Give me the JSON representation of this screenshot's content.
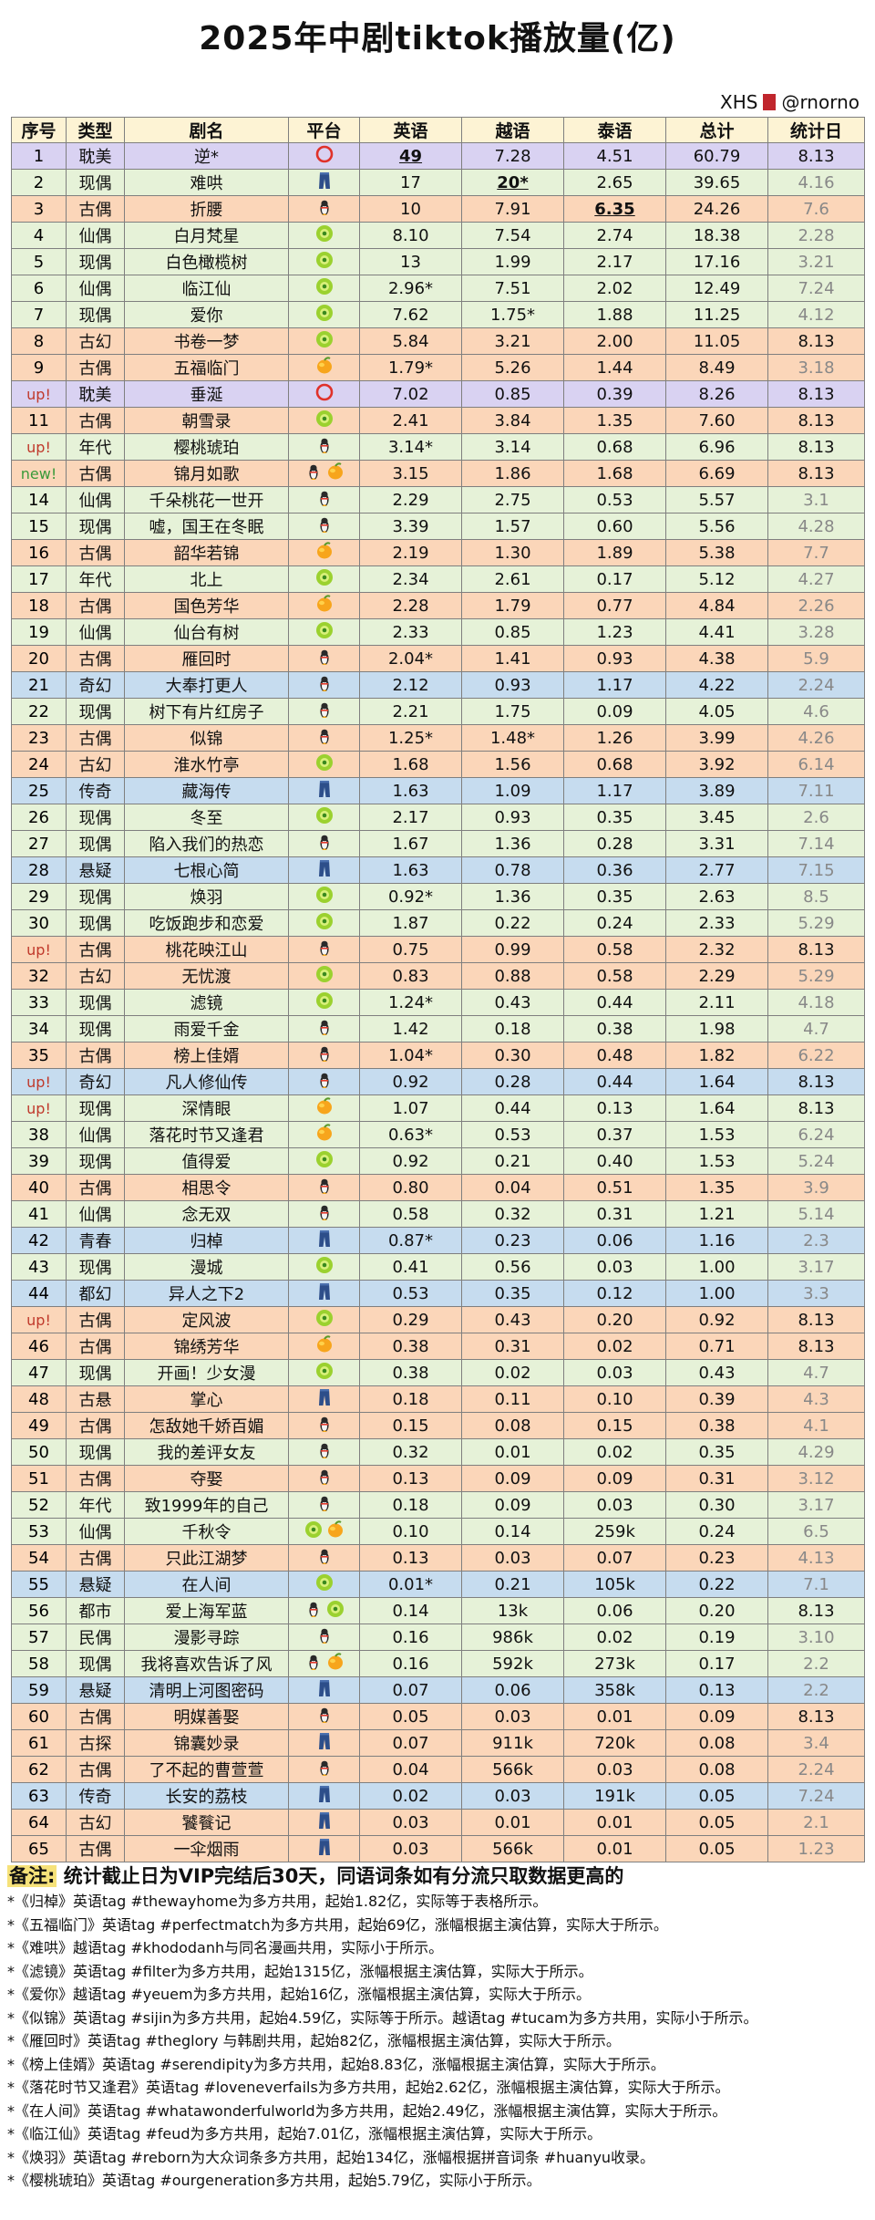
{
  "title": "2025年中剧tiktok播放量(亿)",
  "watermark": "XHS",
  "watermark_handle": "@rnorno",
  "headers": [
    "序号",
    "类型",
    "剧名",
    "平台",
    "英语",
    "越语",
    "泰语",
    "总计",
    "统计日"
  ],
  "row_colors": {
    "耽美": "#d9d2f2",
    "现偶": "#e6f2d8",
    "古偶": "#fbd6b9",
    "仙偶": "#e6f2d8",
    "古幻": "#fbd6b9",
    "年代": "#e6f2d8",
    "奇幻": "#c6dcef",
    "传奇": "#c6dcef",
    "悬疑": "#c6dcef",
    "青春": "#c6dcef",
    "都幻": "#c6dcef",
    "古悬": "#fbd6b9",
    "都市": "#e6f2d8",
    "民偶": "#e6f2d8",
    "古探": "#fbd6b9"
  },
  "platform_icons": {
    "youku": "youku-ring-icon",
    "iqiyi": "iqiyi-green-icon",
    "tencent": "tencent-penguin-icon",
    "mango": "mango-fruit-icon",
    "letv": "jeans-icon"
  },
  "rows": [
    {
      "seq": "1",
      "type": "耽美",
      "name": "逆*",
      "plat": [
        "youku"
      ],
      "en": "49",
      "vi": "7.28",
      "th": "4.51",
      "total": "60.79",
      "date": "8.13",
      "enb": true
    },
    {
      "seq": "2",
      "type": "现偶",
      "name": "难哄",
      "plat": [
        "letv"
      ],
      "en": "17",
      "vi": "20*",
      "th": "2.65",
      "total": "39.65",
      "date": "4.16",
      "dg": true,
      "vib": true
    },
    {
      "seq": "3",
      "type": "古偶",
      "name": "折腰",
      "plat": [
        "tencent"
      ],
      "en": "10",
      "vi": "7.91",
      "th": "6.35",
      "total": "24.26",
      "date": "7.6",
      "dg": true,
      "thb": true
    },
    {
      "seq": "4",
      "type": "仙偶",
      "name": "白月梵星",
      "plat": [
        "iqiyi"
      ],
      "en": "8.10",
      "vi": "7.54",
      "th": "2.74",
      "total": "18.38",
      "date": "2.28",
      "dg": true
    },
    {
      "seq": "5",
      "type": "现偶",
      "name": "白色橄榄树",
      "plat": [
        "iqiyi"
      ],
      "en": "13",
      "vi": "1.99",
      "th": "2.17",
      "total": "17.16",
      "date": "3.21",
      "dg": true
    },
    {
      "seq": "6",
      "type": "仙偶",
      "name": "临江仙",
      "plat": [
        "iqiyi"
      ],
      "en": "2.96*",
      "vi": "7.51",
      "th": "2.02",
      "total": "12.49",
      "date": "7.24",
      "dg": true
    },
    {
      "seq": "7",
      "type": "现偶",
      "name": "爱你",
      "plat": [
        "iqiyi"
      ],
      "en": "7.62",
      "vi": "1.75*",
      "th": "1.88",
      "total": "11.25",
      "date": "4.12",
      "dg": true
    },
    {
      "seq": "8",
      "type": "古幻",
      "name": "书卷一梦",
      "plat": [
        "iqiyi"
      ],
      "en": "5.84",
      "vi": "3.21",
      "th": "2.00",
      "total": "11.05",
      "date": "8.13"
    },
    {
      "seq": "9",
      "type": "古偶",
      "name": "五福临门",
      "plat": [
        "mango"
      ],
      "en": "1.79*",
      "vi": "5.26",
      "th": "1.44",
      "total": "8.49",
      "date": "3.18",
      "dg": true
    },
    {
      "seq": "up!",
      "type": "耽美",
      "name": "垂涎",
      "plat": [
        "youku"
      ],
      "en": "7.02",
      "vi": "0.85",
      "th": "0.39",
      "total": "8.26",
      "date": "8.13"
    },
    {
      "seq": "11",
      "type": "古偶",
      "name": "朝雪录",
      "plat": [
        "iqiyi"
      ],
      "en": "2.41",
      "vi": "3.84",
      "th": "1.35",
      "total": "7.60",
      "date": "8.13"
    },
    {
      "seq": "up!",
      "type": "年代",
      "name": "樱桃琥珀",
      "plat": [
        "tencent"
      ],
      "en": "3.14*",
      "vi": "3.14",
      "th": "0.68",
      "total": "6.96",
      "date": "8.13"
    },
    {
      "seq": "new!",
      "type": "古偶",
      "name": "锦月如歌",
      "plat": [
        "tencent",
        "mango"
      ],
      "en": "3.15",
      "vi": "1.86",
      "th": "1.68",
      "total": "6.69",
      "date": "8.13"
    },
    {
      "seq": "14",
      "type": "仙偶",
      "name": "千朵桃花一世开",
      "plat": [
        "tencent"
      ],
      "en": "2.29",
      "vi": "2.75",
      "th": "0.53",
      "total": "5.57",
      "date": "3.1",
      "dg": true
    },
    {
      "seq": "15",
      "type": "现偶",
      "name": "嘘，国王在冬眠",
      "plat": [
        "tencent"
      ],
      "en": "3.39",
      "vi": "1.57",
      "th": "0.60",
      "total": "5.56",
      "date": "4.28",
      "dg": true
    },
    {
      "seq": "16",
      "type": "古偶",
      "name": "韶华若锦",
      "plat": [
        "mango"
      ],
      "en": "2.19",
      "vi": "1.30",
      "th": "1.89",
      "total": "5.38",
      "date": "7.7",
      "dg": true
    },
    {
      "seq": "17",
      "type": "年代",
      "name": "北上",
      "plat": [
        "iqiyi"
      ],
      "en": "2.34",
      "vi": "2.61",
      "th": "0.17",
      "total": "5.12",
      "date": "4.27",
      "dg": true
    },
    {
      "seq": "18",
      "type": "古偶",
      "name": "国色芳华",
      "plat": [
        "mango"
      ],
      "en": "2.28",
      "vi": "1.79",
      "th": "0.77",
      "total": "4.84",
      "date": "2.26",
      "dg": true
    },
    {
      "seq": "19",
      "type": "仙偶",
      "name": "仙台有树",
      "plat": [
        "iqiyi"
      ],
      "en": "2.33",
      "vi": "0.85",
      "th": "1.23",
      "total": "4.41",
      "date": "3.28",
      "dg": true
    },
    {
      "seq": "20",
      "type": "古偶",
      "name": "雁回时",
      "plat": [
        "tencent"
      ],
      "en": "2.04*",
      "vi": "1.41",
      "th": "0.93",
      "total": "4.38",
      "date": "5.9",
      "dg": true
    },
    {
      "seq": "21",
      "type": "奇幻",
      "name": "大奉打更人",
      "plat": [
        "tencent"
      ],
      "en": "2.12",
      "vi": "0.93",
      "th": "1.17",
      "total": "4.22",
      "date": "2.24",
      "dg": true
    },
    {
      "seq": "22",
      "type": "现偶",
      "name": "树下有片红房子",
      "plat": [
        "tencent"
      ],
      "en": "2.21",
      "vi": "1.75",
      "th": "0.09",
      "total": "4.05",
      "date": "4.6",
      "dg": true
    },
    {
      "seq": "23",
      "type": "古偶",
      "name": "似锦",
      "plat": [
        "tencent"
      ],
      "en": "1.25*",
      "vi": "1.48*",
      "th": "1.26",
      "total": "3.99",
      "date": "4.26",
      "dg": true
    },
    {
      "seq": "24",
      "type": "古幻",
      "name": "淮水竹亭",
      "plat": [
        "iqiyi"
      ],
      "en": "1.68",
      "vi": "1.56",
      "th": "0.68",
      "total": "3.92",
      "date": "6.14",
      "dg": true
    },
    {
      "seq": "25",
      "type": "传奇",
      "name": "藏海传",
      "plat": [
        "letv"
      ],
      "en": "1.63",
      "vi": "1.09",
      "th": "1.17",
      "total": "3.89",
      "date": "7.11",
      "dg": true
    },
    {
      "seq": "26",
      "type": "现偶",
      "name": "冬至",
      "plat": [
        "iqiyi"
      ],
      "en": "2.17",
      "vi": "0.93",
      "th": "0.35",
      "total": "3.45",
      "date": "2.6",
      "dg": true
    },
    {
      "seq": "27",
      "type": "现偶",
      "name": "陷入我们的热恋",
      "plat": [
        "tencent"
      ],
      "en": "1.67",
      "vi": "1.36",
      "th": "0.28",
      "total": "3.31",
      "date": "7.14",
      "dg": true
    },
    {
      "seq": "28",
      "type": "悬疑",
      "name": "七根心简",
      "plat": [
        "letv"
      ],
      "en": "1.63",
      "vi": "0.78",
      "th": "0.36",
      "total": "2.77",
      "date": "7.15",
      "dg": true
    },
    {
      "seq": "29",
      "type": "现偶",
      "name": "焕羽",
      "plat": [
        "iqiyi"
      ],
      "en": "0.92*",
      "vi": "1.36",
      "th": "0.35",
      "total": "2.63",
      "date": "8.5",
      "dg": true
    },
    {
      "seq": "30",
      "type": "现偶",
      "name": "吃饭跑步和恋爱",
      "plat": [
        "iqiyi"
      ],
      "en": "1.87",
      "vi": "0.22",
      "th": "0.24",
      "total": "2.33",
      "date": "5.29",
      "dg": true
    },
    {
      "seq": "up!",
      "type": "古偶",
      "name": "桃花映江山",
      "plat": [
        "tencent"
      ],
      "en": "0.75",
      "vi": "0.99",
      "th": "0.58",
      "total": "2.32",
      "date": "8.13"
    },
    {
      "seq": "32",
      "type": "古幻",
      "name": "无忧渡",
      "plat": [
        "iqiyi"
      ],
      "en": "0.83",
      "vi": "0.88",
      "th": "0.58",
      "total": "2.29",
      "date": "5.29",
      "dg": true
    },
    {
      "seq": "33",
      "type": "现偶",
      "name": "滤镜",
      "plat": [
        "iqiyi"
      ],
      "en": "1.24*",
      "vi": "0.43",
      "th": "0.44",
      "total": "2.11",
      "date": "4.18",
      "dg": true
    },
    {
      "seq": "34",
      "type": "现偶",
      "name": "雨爱千金",
      "plat": [
        "tencent"
      ],
      "en": "1.42",
      "vi": "0.18",
      "th": "0.38",
      "total": "1.98",
      "date": "4.7",
      "dg": true
    },
    {
      "seq": "35",
      "type": "古偶",
      "name": "榜上佳婿",
      "plat": [
        "tencent"
      ],
      "en": "1.04*",
      "vi": "0.30",
      "th": "0.48",
      "total": "1.82",
      "date": "6.22",
      "dg": true
    },
    {
      "seq": "up!",
      "type": "奇幻",
      "name": "凡人修仙传",
      "plat": [
        "tencent"
      ],
      "en": "0.92",
      "vi": "0.28",
      "th": "0.44",
      "total": "1.64",
      "date": "8.13"
    },
    {
      "seq": "up!",
      "type": "现偶",
      "name": "深情眼",
      "plat": [
        "mango"
      ],
      "en": "1.07",
      "vi": "0.44",
      "th": "0.13",
      "total": "1.64",
      "date": "8.13"
    },
    {
      "seq": "38",
      "type": "仙偶",
      "name": "落花时节又逢君",
      "plat": [
        "mango"
      ],
      "en": "0.63*",
      "vi": "0.53",
      "th": "0.37",
      "total": "1.53",
      "date": "6.24",
      "dg": true
    },
    {
      "seq": "39",
      "type": "现偶",
      "name": "值得爱",
      "plat": [
        "iqiyi"
      ],
      "en": "0.92",
      "vi": "0.21",
      "th": "0.40",
      "total": "1.53",
      "date": "5.24",
      "dg": true
    },
    {
      "seq": "40",
      "type": "古偶",
      "name": "相思令",
      "plat": [
        "tencent"
      ],
      "en": "0.80",
      "vi": "0.04",
      "th": "0.51",
      "total": "1.35",
      "date": "3.9",
      "dg": true
    },
    {
      "seq": "41",
      "type": "仙偶",
      "name": "念无双",
      "plat": [
        "tencent"
      ],
      "en": "0.58",
      "vi": "0.32",
      "th": "0.31",
      "total": "1.21",
      "date": "5.14",
      "dg": true
    },
    {
      "seq": "42",
      "type": "青春",
      "name": "归棹",
      "plat": [
        "letv"
      ],
      "en": "0.87*",
      "vi": "0.23",
      "th": "0.06",
      "total": "1.16",
      "date": "2.3",
      "dg": true
    },
    {
      "seq": "43",
      "type": "现偶",
      "name": "漫城",
      "plat": [
        "iqiyi"
      ],
      "en": "0.41",
      "vi": "0.56",
      "th": "0.03",
      "total": "1.00",
      "date": "3.17",
      "dg": true
    },
    {
      "seq": "44",
      "type": "都幻",
      "name": "异人之下2",
      "plat": [
        "letv"
      ],
      "en": "0.53",
      "vi": "0.35",
      "th": "0.12",
      "total": "1.00",
      "date": "3.3",
      "dg": true
    },
    {
      "seq": "up!",
      "type": "古偶",
      "name": "定风波",
      "plat": [
        "iqiyi"
      ],
      "en": "0.29",
      "vi": "0.43",
      "th": "0.20",
      "total": "0.92",
      "date": "8.13"
    },
    {
      "seq": "46",
      "type": "古偶",
      "name": "锦绣芳华",
      "plat": [
        "mango"
      ],
      "en": "0.38",
      "vi": "0.31",
      "th": "0.02",
      "total": "0.71",
      "date": "8.13"
    },
    {
      "seq": "47",
      "type": "现偶",
      "name": "开画！少女漫",
      "plat": [
        "iqiyi"
      ],
      "en": "0.38",
      "vi": "0.02",
      "th": "0.03",
      "total": "0.43",
      "date": "4.7",
      "dg": true
    },
    {
      "seq": "48",
      "type": "古悬",
      "name": "掌心",
      "plat": [
        "letv"
      ],
      "en": "0.18",
      "vi": "0.11",
      "th": "0.10",
      "total": "0.39",
      "date": "4.3",
      "dg": true
    },
    {
      "seq": "49",
      "type": "古偶",
      "name": "怎敌她千娇百媚",
      "plat": [
        "tencent"
      ],
      "en": "0.15",
      "vi": "0.08",
      "th": "0.15",
      "total": "0.38",
      "date": "4.1",
      "dg": true
    },
    {
      "seq": "50",
      "type": "现偶",
      "name": "我的差评女友",
      "plat": [
        "tencent"
      ],
      "en": "0.32",
      "vi": "0.01",
      "th": "0.02",
      "total": "0.35",
      "date": "4.29",
      "dg": true
    },
    {
      "seq": "51",
      "type": "古偶",
      "name": "夺娶",
      "plat": [
        "tencent"
      ],
      "en": "0.13",
      "vi": "0.09",
      "th": "0.09",
      "total": "0.31",
      "date": "3.12",
      "dg": true
    },
    {
      "seq": "52",
      "type": "年代",
      "name": "致1999年的自己",
      "plat": [
        "tencent"
      ],
      "en": "0.18",
      "vi": "0.09",
      "th": "0.03",
      "total": "0.30",
      "date": "3.17",
      "dg": true
    },
    {
      "seq": "53",
      "type": "仙偶",
      "name": "千秋令",
      "plat": [
        "iqiyi",
        "mango"
      ],
      "en": "0.10",
      "vi": "0.14",
      "th": "259k",
      "total": "0.24",
      "date": "6.5",
      "dg": true
    },
    {
      "seq": "54",
      "type": "古偶",
      "name": "只此江湖梦",
      "plat": [
        "tencent"
      ],
      "en": "0.13",
      "vi": "0.03",
      "th": "0.07",
      "total": "0.23",
      "date": "4.13",
      "dg": true
    },
    {
      "seq": "55",
      "type": "悬疑",
      "name": "在人间",
      "plat": [
        "iqiyi"
      ],
      "en": "0.01*",
      "vi": "0.21",
      "th": "105k",
      "total": "0.22",
      "date": "7.1",
      "dg": true
    },
    {
      "seq": "56",
      "type": "都市",
      "name": "爱上海军蓝",
      "plat": [
        "tencent",
        "iqiyi"
      ],
      "en": "0.14",
      "vi": "13k",
      "th": "0.06",
      "total": "0.20",
      "date": "8.13"
    },
    {
      "seq": "57",
      "type": "民偶",
      "name": "漫影寻踪",
      "plat": [
        "tencent"
      ],
      "en": "0.16",
      "vi": "986k",
      "th": "0.02",
      "total": "0.19",
      "date": "3.10",
      "dg": true
    },
    {
      "seq": "58",
      "type": "现偶",
      "name": "我将喜欢告诉了风",
      "plat": [
        "tencent",
        "mango"
      ],
      "en": "0.16",
      "vi": "592k",
      "th": "273k",
      "total": "0.17",
      "date": "2.2",
      "dg": true
    },
    {
      "seq": "59",
      "type": "悬疑",
      "name": "清明上河图密码",
      "plat": [
        "letv"
      ],
      "en": "0.07",
      "vi": "0.06",
      "th": "358k",
      "total": "0.13",
      "date": "2.2",
      "dg": true
    },
    {
      "seq": "60",
      "type": "古偶",
      "name": "明媒善娶",
      "plat": [
        "tencent"
      ],
      "en": "0.05",
      "vi": "0.03",
      "th": "0.01",
      "total": "0.09",
      "date": "8.13"
    },
    {
      "seq": "61",
      "type": "古探",
      "name": "锦囊妙录",
      "plat": [
        "letv"
      ],
      "en": "0.07",
      "vi": "911k",
      "th": "720k",
      "total": "0.08",
      "date": "3.4",
      "dg": true
    },
    {
      "seq": "62",
      "type": "古偶",
      "name": "了不起的曹萱萱",
      "plat": [
        "tencent"
      ],
      "en": "0.04",
      "vi": "566k",
      "th": "0.03",
      "total": "0.08",
      "date": "2.24",
      "dg": true
    },
    {
      "seq": "63",
      "type": "传奇",
      "name": "长安的荔枝",
      "plat": [
        "letv"
      ],
      "en": "0.02",
      "vi": "0.03",
      "th": "191k",
      "total": "0.05",
      "date": "7.24",
      "dg": true
    },
    {
      "seq": "64",
      "type": "古幻",
      "name": "饕餮记",
      "plat": [
        "letv"
      ],
      "en": "0.03",
      "vi": "0.01",
      "th": "0.01",
      "total": "0.05",
      "date": "2.1",
      "dg": true
    },
    {
      "seq": "65",
      "type": "古偶",
      "name": "一伞烟雨",
      "plat": [
        "letv"
      ],
      "en": "0.03",
      "vi": "566k",
      "th": "0.01",
      "total": "0.05",
      "date": "1.23",
      "dg": true
    }
  ],
  "notes_head_key": "备注:",
  "notes_head_text": "统计截止日为VIP完结后30天，同语词条如有分流只取数据更高的",
  "notes": [
    "*《归棹》英语tag #thewayhome为多方共用，起始1.82亿，实际等于表格所示。",
    "*《五福临门》英语tag #perfectmatch为多方共用，起始69亿，涨幅根据主演估算，实际大于所示。",
    "*《难哄》越语tag #khododanh与同名漫画共用，实际小于所示。",
    "*《滤镜》英语tag #filter为多方共用，起始1315亿，涨幅根据主演估算，实际大于所示。",
    "*《爱你》越语tag #yeuem为多方共用，起始16亿，涨幅根据主演估算，实际大于所示。",
    "*《似锦》英语tag #sijin为多方共用，起始4.59亿，实际等于所示。越语tag #tucam为多方共用，实际小于所示。",
    "*《雁回时》英语tag #theglory 与韩剧共用，起始82亿，涨幅根据主演估算，实际大于所示。",
    "*《榜上佳婿》英语tag #serendipity为多方共用，起始8.83亿，涨幅根据主演估算，实际大于所示。",
    "*《落花时节又逢君》英语tag #loveneverfails为多方共用，起始2.62亿，涨幅根据主演估算，实际大于所示。",
    "*《在人间》英语tag #whatawonderfulworld为多方共用，起始2.49亿，涨幅根据主演估算，实际大于所示。",
    "*《临江仙》英语tag #feud为多方共用，起始7.01亿，涨幅根据主演估算，实际大于所示。",
    "*《焕羽》英语tag #reborn为大众词条多方共用，起始134亿，涨幅根据拼音词条 #huanyu收录。",
    "*《樱桃琥珀》英语tag #ourgeneration多方共用，起始5.79亿，实际小于所示。"
  ]
}
